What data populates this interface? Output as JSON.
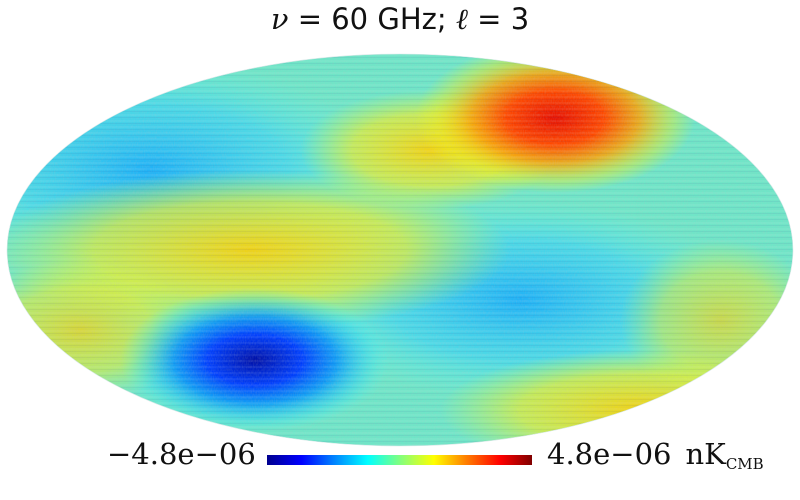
{
  "title": {
    "nu_symbol": "ν",
    "equals1": " = ",
    "frequency": "60 GHz;",
    "ell_symbol": " ℓ",
    "equals2": " = ",
    "multipole": "3"
  },
  "colorbar": {
    "min_label": "−4.8e−06",
    "max_label": "4.8e−06",
    "unit_main": "nK",
    "unit_sub": "CMB",
    "colormap": [
      "#00008f",
      "#0000ff",
      "#0080ff",
      "#00ffff",
      "#80ff80",
      "#ffff00",
      "#ff8000",
      "#ff0000",
      "#800000"
    ]
  },
  "map": {
    "projection": "mollweide",
    "background": "#ffffff"
  }
}
